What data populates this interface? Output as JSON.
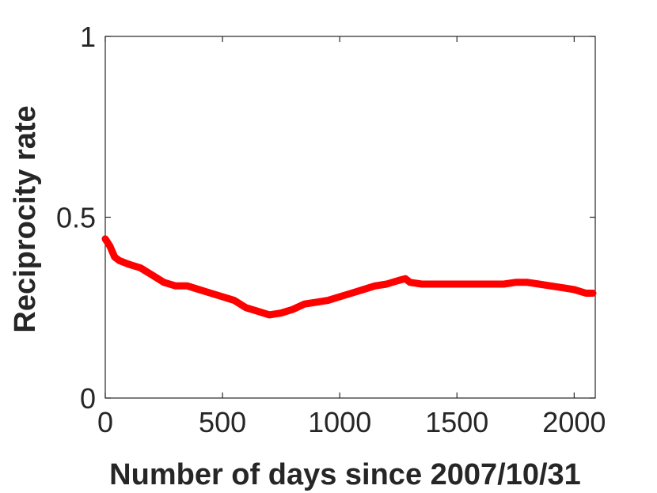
{
  "chart_data": {
    "type": "line",
    "title": "",
    "xlabel": "Number of days since 2007/10/31",
    "ylabel": "Reciprocity rate",
    "xlim": [
      0,
      2090
    ],
    "ylim": [
      0,
      1
    ],
    "xticks": [
      0,
      500,
      1000,
      1500,
      2000
    ],
    "yticks": [
      0,
      0.5,
      1
    ],
    "xtick_labels": [
      "0",
      "500",
      "1000",
      "1500",
      "2000"
    ],
    "ytick_labels": [
      "0",
      "0.5",
      "1"
    ],
    "grid": false,
    "line_color": "#ff0000",
    "series": [
      {
        "x": [
          0,
          20,
          40,
          60,
          100,
          150,
          200,
          250,
          300,
          350,
          400,
          450,
          500,
          550,
          600,
          650,
          700,
          750,
          800,
          850,
          900,
          950,
          1000,
          1050,
          1100,
          1150,
          1200,
          1250,
          1280,
          1300,
          1350,
          1400,
          1450,
          1500,
          1550,
          1600,
          1650,
          1700,
          1750,
          1800,
          1850,
          1900,
          1950,
          2000,
          2050,
          2080
        ],
        "y": [
          0.44,
          0.42,
          0.39,
          0.38,
          0.37,
          0.36,
          0.34,
          0.32,
          0.31,
          0.31,
          0.3,
          0.29,
          0.28,
          0.27,
          0.25,
          0.24,
          0.23,
          0.235,
          0.245,
          0.26,
          0.265,
          0.27,
          0.28,
          0.29,
          0.3,
          0.31,
          0.315,
          0.325,
          0.33,
          0.32,
          0.315,
          0.315,
          0.315,
          0.315,
          0.315,
          0.315,
          0.315,
          0.315,
          0.32,
          0.32,
          0.315,
          0.31,
          0.305,
          0.3,
          0.29,
          0.29
        ]
      }
    ]
  }
}
